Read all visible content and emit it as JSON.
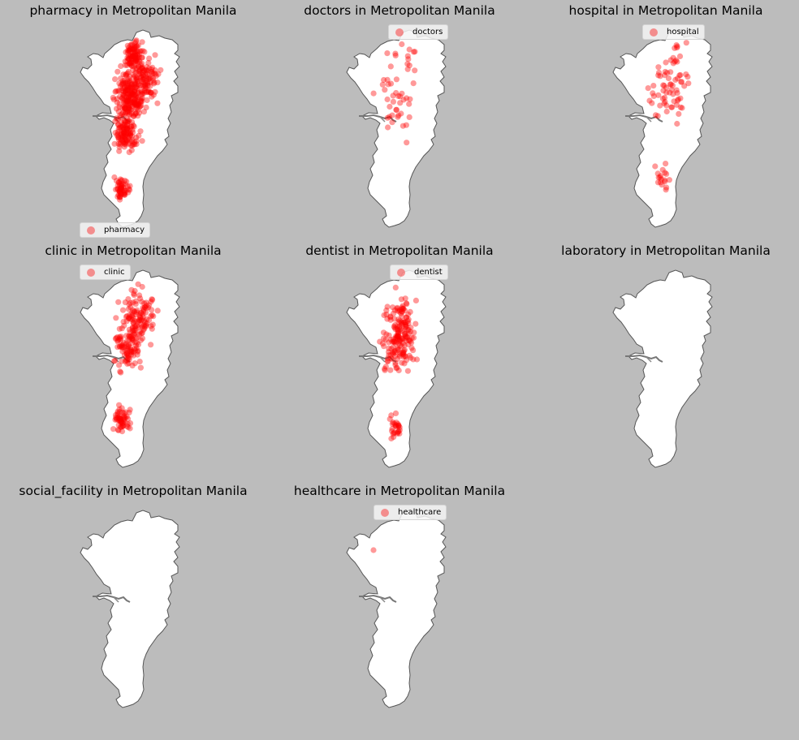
{
  "colors": {
    "background": "#bcbcbc",
    "land": "#ffffff",
    "outline": "#555555",
    "marker": "#ff0000"
  },
  "panels": [
    {
      "title": "pharmacy in Metropolitan Manila",
      "legend": "pharmacy",
      "legend_position": "bottom-left",
      "point_count": 560
    },
    {
      "title": "doctors in Metropolitan Manila",
      "legend": "doctors",
      "legend_position": "top-center",
      "point_count": 50
    },
    {
      "title": "hospital in Metropolitan Manila",
      "legend": "hospital",
      "legend_position": "top-center",
      "point_count": 90
    },
    {
      "title": "clinic in Metropolitan Manila",
      "legend": "clinic",
      "legend_position": "top-left",
      "point_count": 260
    },
    {
      "title": "dentist in Metropolitan Manila",
      "legend": "dentist",
      "legend_position": "top-center",
      "point_count": 210
    },
    {
      "title": "laboratory in Metropolitan Manila",
      "legend": "",
      "legend_position": "none",
      "point_count": 0
    },
    {
      "title": "social_facility in Metropolitan Manila",
      "legend": "",
      "legend_position": "none",
      "point_count": 0
    },
    {
      "title": "healthcare in Metropolitan Manila",
      "legend": "healthcare",
      "legend_position": "top-center",
      "point_count": 1
    }
  ]
}
